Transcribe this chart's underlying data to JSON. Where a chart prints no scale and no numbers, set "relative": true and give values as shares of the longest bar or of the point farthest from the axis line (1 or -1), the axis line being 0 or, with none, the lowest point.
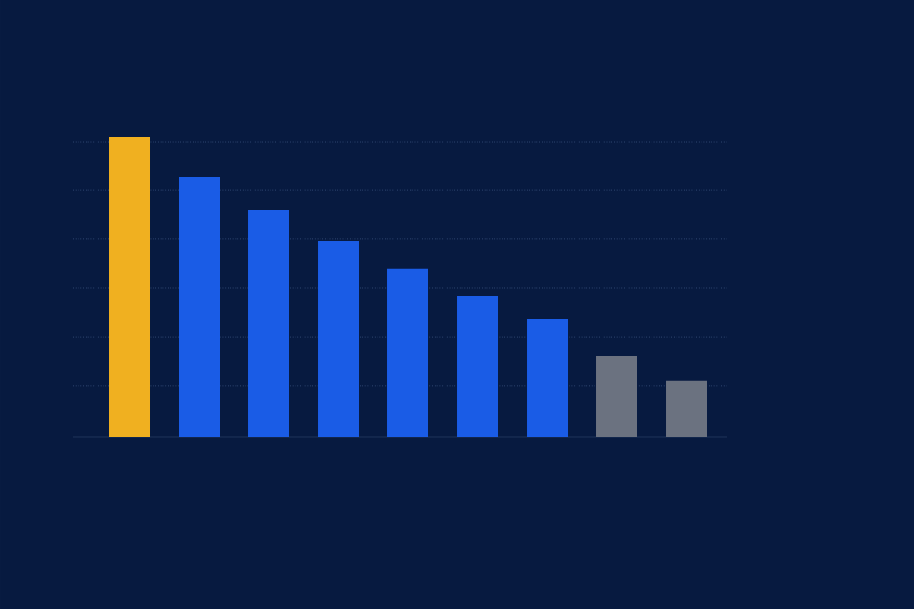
{
  "chart_data": {
    "type": "bar",
    "relative": true,
    "ref_lines": [
      {
        "axis": "y",
        "value": 0.17,
        "line_style": "dotted"
      },
      {
        "axis": "y",
        "value": 0.333,
        "line_style": "dotted"
      },
      {
        "axis": "y",
        "value": 0.497,
        "line_style": "dotted"
      },
      {
        "axis": "y",
        "value": 0.661,
        "line_style": "dotted"
      },
      {
        "axis": "y",
        "value": 0.824,
        "line_style": "dotted"
      },
      {
        "axis": "y",
        "value": 0.985,
        "line_style": "dotted"
      }
    ],
    "categories": [
      null,
      null,
      null,
      null,
      null,
      null,
      null,
      null,
      null
    ],
    "values": [
      1,
      0.869,
      0.759,
      0.655,
      0.56,
      0.47,
      0.393,
      0.271,
      0.188
    ],
    "colors": [
      "#f0b020",
      "#1a5ce6",
      "#1a5ce6",
      "#1a5ce6",
      "#1a5ce6",
      "#1a5ce6",
      "#1a5ce6",
      "#6b7280",
      "#6b7280"
    ]
  }
}
